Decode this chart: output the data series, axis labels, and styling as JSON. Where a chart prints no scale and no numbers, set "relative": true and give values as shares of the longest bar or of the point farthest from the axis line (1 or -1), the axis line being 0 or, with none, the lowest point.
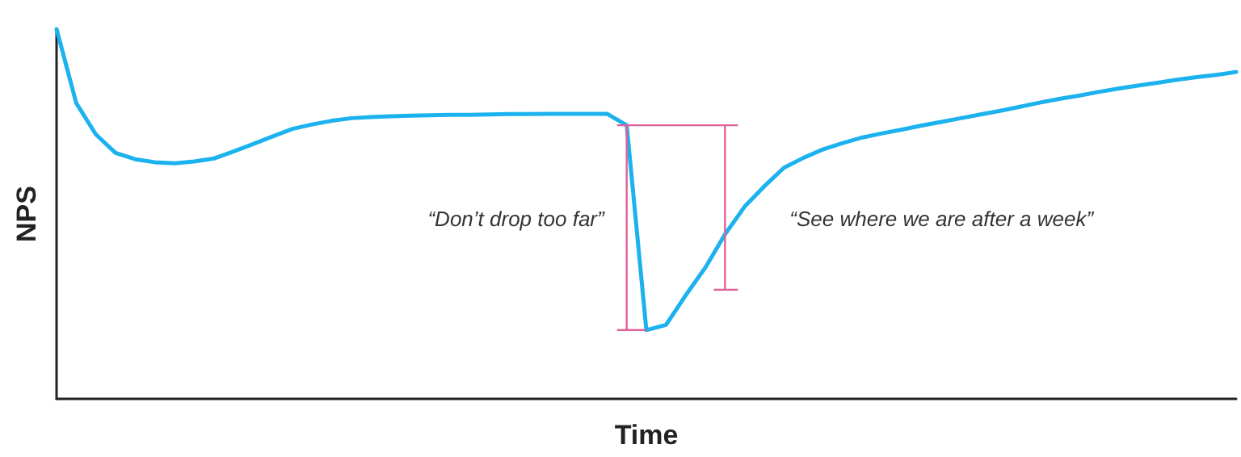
{
  "chart_data": {
    "type": "line",
    "relative": true,
    "xlabel": "Time",
    "ylabel": "NPS",
    "color": "#1cb2ee",
    "marker": "none",
    "line_style": "solid",
    "grid": false,
    "categories": [
      null,
      null,
      null,
      null,
      null,
      null,
      null,
      null,
      null,
      null,
      null,
      null,
      null,
      null,
      null,
      null,
      null,
      null,
      null,
      null,
      null,
      null,
      null,
      null,
      null,
      null,
      null,
      null,
      null,
      null,
      null,
      null,
      null,
      null,
      null,
      null,
      null,
      null,
      null,
      null,
      null,
      null,
      null,
      null,
      null,
      null,
      null,
      null,
      null,
      null,
      null,
      null,
      null,
      null,
      null,
      null,
      null,
      null,
      null,
      null,
      null
    ],
    "values": [
      1.0,
      0.8,
      0.715,
      0.665,
      0.648,
      0.64,
      0.637,
      0.642,
      0.65,
      0.669,
      0.689,
      0.71,
      0.73,
      0.742,
      0.752,
      0.759,
      0.762,
      0.764,
      0.766,
      0.767,
      0.768,
      0.768,
      0.769,
      0.77,
      0.77,
      0.771,
      0.771,
      0.771,
      0.771,
      0.74,
      0.186,
      0.2,
      0.28,
      0.355,
      0.445,
      0.52,
      0.575,
      0.625,
      0.652,
      0.675,
      0.692,
      0.707,
      0.718,
      0.728,
      0.739,
      0.749,
      0.759,
      0.769,
      0.779,
      0.79,
      0.801,
      0.811,
      0.82,
      0.83,
      0.839,
      0.847,
      0.855,
      0.863,
      0.87,
      0.876,
      0.884
    ],
    "annotations": [
      "“Don’t drop too far”",
      "“See where we are after a week”"
    ]
  }
}
